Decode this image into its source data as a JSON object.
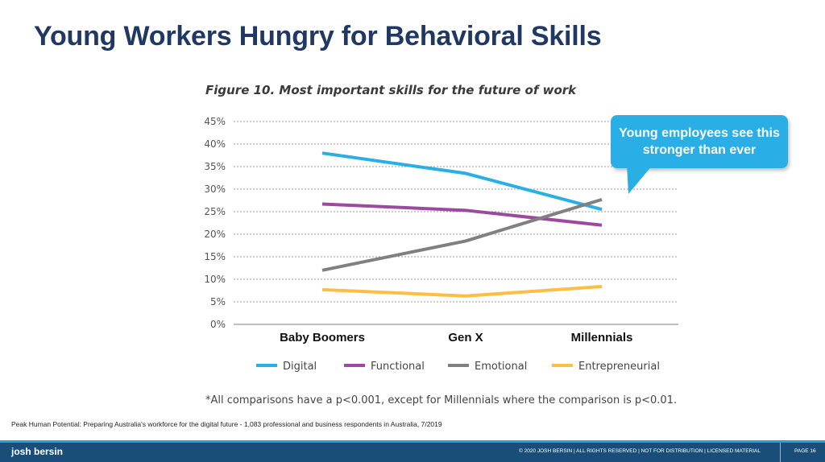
{
  "slide": {
    "title": "Young Workers Hungry for Behavioral Skills",
    "callout": "Young employees see this stronger than ever",
    "footnote": "*All comparisons have a p<0.001, except for Millennials where the comparison is p<0.01.",
    "source": "Peak Human Potential: Preparing Australia's workforce for the digital future - 1,083 professional and business respondents in Australia, 7/2019"
  },
  "footer": {
    "brand": "josh bersin",
    "copyright": "© 2020 JOSH BERSIN | ALL RIGHTS RESERVED | NOT FOR DISTRIBUTION | LICENSED MATERIAL",
    "page_label": "PAGE 16"
  },
  "chart_data": {
    "type": "line",
    "title": "Figure 10. Most important skills for the future of work",
    "categories": [
      "Baby Boomers",
      "Gen X",
      "Millennials"
    ],
    "y_ticks": [
      "0%",
      "5%",
      "10%",
      "15%",
      "20%",
      "25%",
      "30%",
      "35%",
      "40%",
      "45%"
    ],
    "ylim": [
      0,
      45
    ],
    "grid": true,
    "legend_position": "bottom",
    "series": [
      {
        "name": "Digital",
        "values": [
          38,
          33.5,
          25.5
        ],
        "color": "#29aee6"
      },
      {
        "name": "Functional",
        "values": [
          26.7,
          25.3,
          22
        ],
        "color": "#9b4aa0"
      },
      {
        "name": "Emotional",
        "values": [
          12,
          18.5,
          27.7
        ],
        "color": "#808080"
      },
      {
        "name": "Entrepreneurial",
        "values": [
          7.7,
          6.3,
          8.4
        ],
        "color": "#fbbf46"
      }
    ]
  }
}
